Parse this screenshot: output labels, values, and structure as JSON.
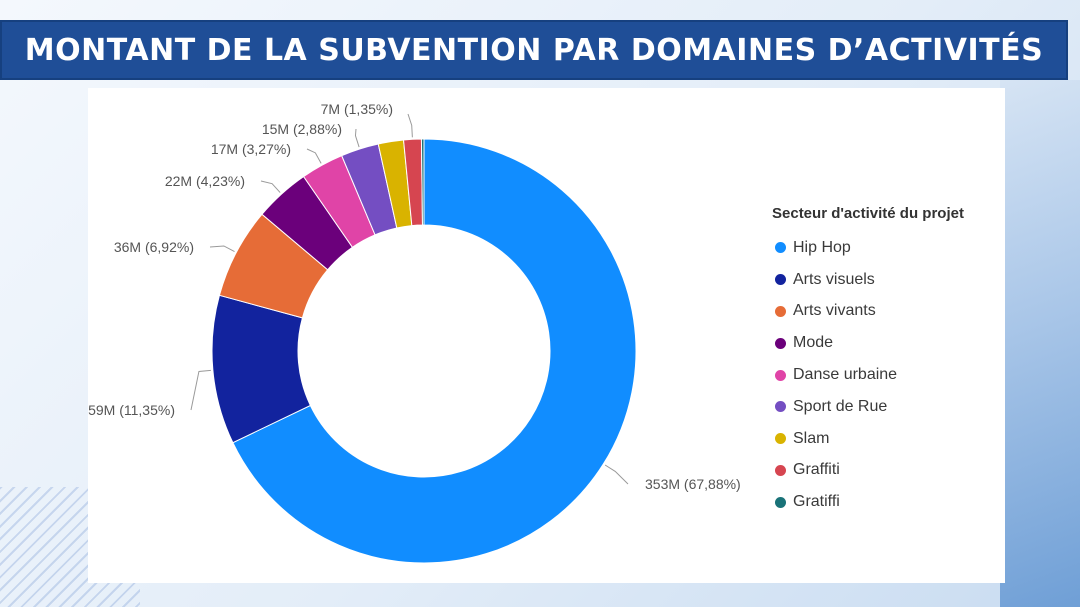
{
  "title": "MONTANT DE LA SUBVENTION PAR DOMAINES D’ACTIVITÉS",
  "chart_data": {
    "type": "pie",
    "donut": true,
    "legend_title": "Secteur d'activité du projet",
    "legend_position": "right",
    "slices": [
      {
        "name": "Hip Hop",
        "value": 353,
        "label": "353M (67,88%)",
        "color": "#118DFF"
      },
      {
        "name": "Arts visuels",
        "value": 59,
        "label": "59M (11,35%)",
        "color": "#12239E"
      },
      {
        "name": "Arts vivants",
        "value": 36,
        "label": "36M (6,92%)",
        "color": "#E66C37"
      },
      {
        "name": "Mode",
        "value": 22,
        "label": "22M (4,23%)",
        "color": "#6B007B"
      },
      {
        "name": "Danse urbaine",
        "value": 17,
        "label": "17M (3,27%)",
        "color": "#E044A7"
      },
      {
        "name": "Sport de Rue",
        "value": 15,
        "label": "15M (2,88%)",
        "color": "#744EC2"
      },
      {
        "name": "Slam",
        "value": 10,
        "label": "",
        "color": "#D9B300"
      },
      {
        "name": "Graffiti",
        "value": 7,
        "label": "7M (1,35%)",
        "color": "#D64550"
      },
      {
        "name": "Gratiffi",
        "value": 1,
        "label": "",
        "color": "#197278"
      }
    ]
  }
}
